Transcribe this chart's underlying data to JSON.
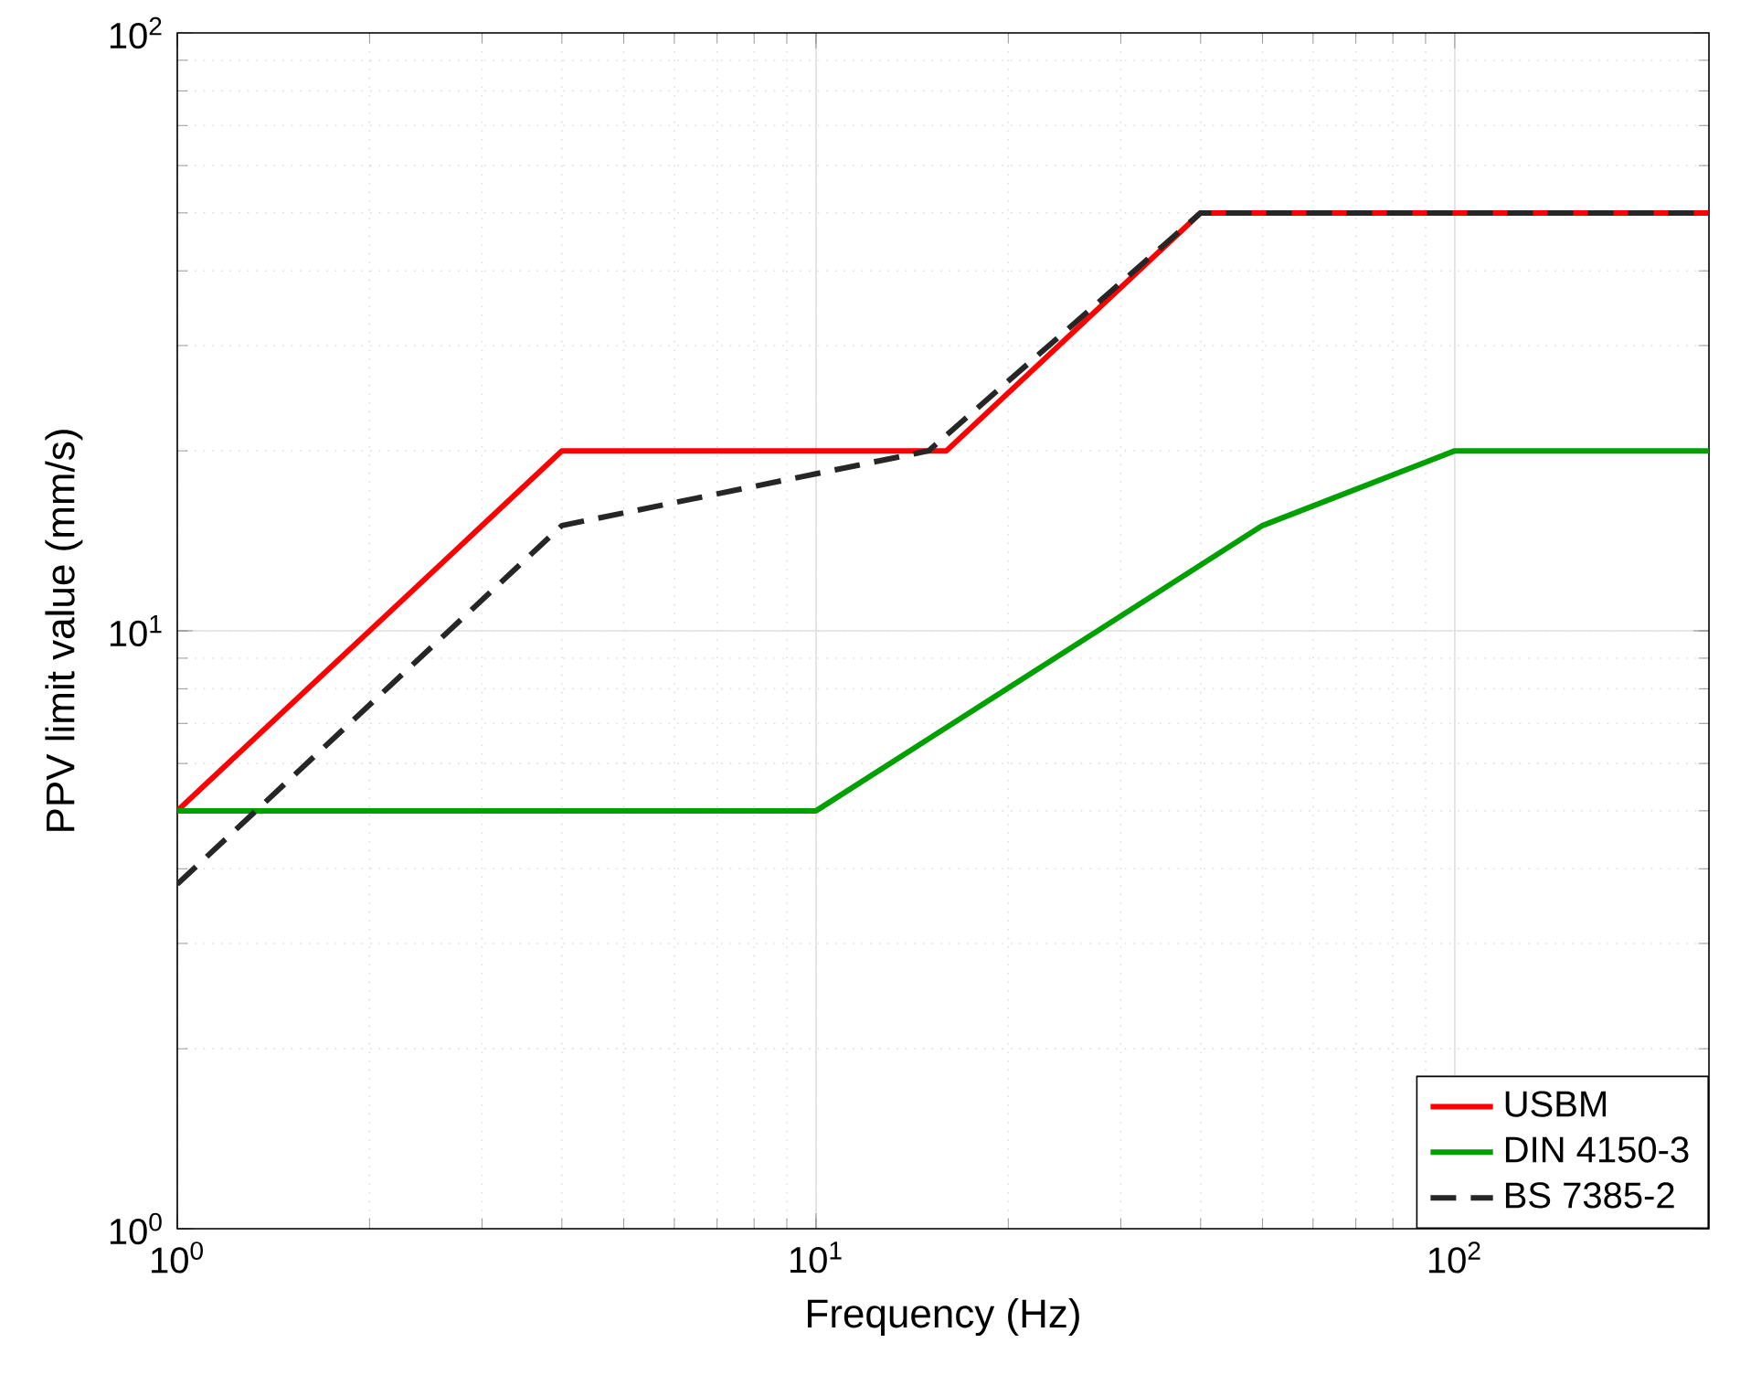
{
  "chart_data": {
    "type": "line",
    "xlabel": "Frequency (Hz)",
    "ylabel": "PPV limit value (mm/s)",
    "log": "xy",
    "grid": true,
    "legend": "bottom right",
    "xlim": [
      1,
      250
    ],
    "ylim": [
      1,
      100
    ],
    "xticks": [
      {
        "value": 1,
        "label": "10$^{0}$"
      },
      {
        "value": 10,
        "label": "10$^{1}$"
      },
      {
        "value": 100,
        "label": "10$^{2}$"
      }
    ],
    "yticks": [
      {
        "value": 1,
        "label": "10$^{0}$"
      },
      {
        "value": 10,
        "label": "10$^{1}$"
      },
      {
        "value": 100,
        "label": "10$^{2}$"
      }
    ],
    "series": [
      {
        "name": "USBM",
        "color": "#ff0000",
        "line_style": "solid",
        "x": [
          1,
          4,
          16,
          40,
          250
        ],
        "values": [
          5,
          20,
          20,
          50,
          50
        ]
      },
      {
        "name": "DIN 4150-3",
        "color": "#00a000",
        "line_style": "solid",
        "x": [
          1,
          10,
          50,
          100,
          250
        ],
        "values": [
          5,
          5,
          15,
          20,
          20
        ]
      },
      {
        "name": "BS 7385-2",
        "color": "#262626",
        "line_style": "dashed",
        "x": [
          1,
          4,
          15,
          40,
          250
        ],
        "values": [
          3.77,
          15,
          20,
          50,
          50
        ]
      }
    ]
  }
}
